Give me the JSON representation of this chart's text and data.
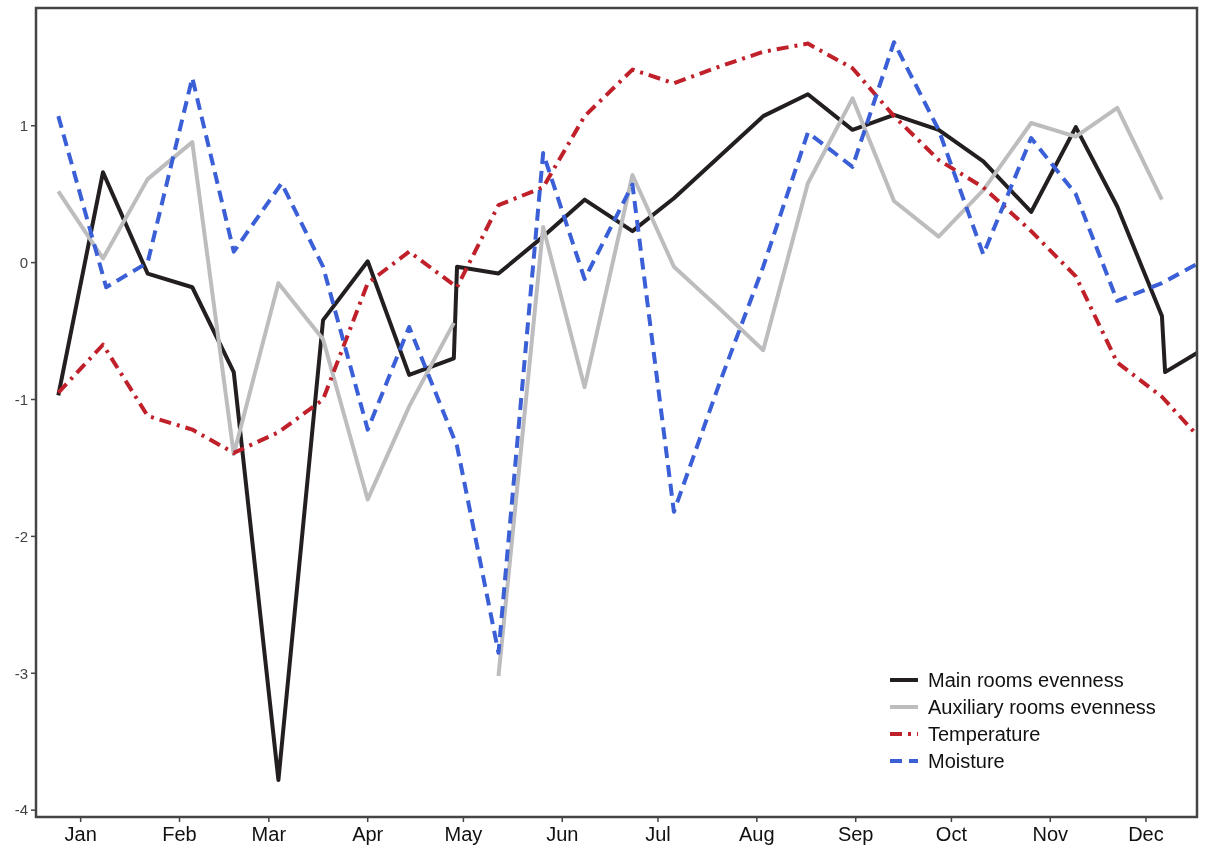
{
  "chart_data": {
    "type": "line",
    "xlim": [
      "--01-01",
      "--12-31"
    ],
    "ylim": [
      -4.05,
      1.86
    ],
    "xticks": [
      {
        "value": "--01-15",
        "label": "Jan"
      },
      {
        "value": "--02-15",
        "label": "Feb"
      },
      {
        "value": "--03-15",
        "label": "Mar"
      },
      {
        "value": "--04-15",
        "label": "Apr"
      },
      {
        "value": "--05-15",
        "label": "May"
      },
      {
        "value": "--06-15",
        "label": "Jun"
      },
      {
        "value": "--07-15",
        "label": "Jul"
      },
      {
        "value": "--08-15",
        "label": "Aug"
      },
      {
        "value": "--09-15",
        "label": "Sep"
      },
      {
        "value": "--10-15",
        "label": "Oct"
      },
      {
        "value": "--11-15",
        "label": "Nov"
      },
      {
        "value": "--12-15",
        "label": "Dec"
      }
    ],
    "yticks": [
      -4,
      -3,
      -2,
      -1,
      0,
      1
    ],
    "legend": "bottom right",
    "marker": "none",
    "series": [
      {
        "name": "Main rooms evenness",
        "color": "#231f20",
        "line_style": "solid",
        "x": [
          "--01-08",
          "--01-22",
          "--02-05",
          "--02-19",
          "--03-04",
          "--03-18",
          "--04-01",
          "--04-15",
          "--04-28",
          "--05-12",
          "--05-13",
          "--05-26",
          "--06-09",
          "--06-22",
          "--07-07",
          "--07-20",
          "--08-03",
          "--08-17",
          "--08-31",
          "--09-14",
          "--09-27",
          "--10-11",
          "--10-25",
          "--11-09",
          "--11-23",
          "--12-06",
          "--12-20",
          "--12-21",
          "--12-31"
        ],
        "values": [
          -0.97,
          0.66,
          -0.08,
          -0.18,
          -0.8,
          -3.78,
          -0.42,
          0.01,
          -0.82,
          -0.7,
          -0.03,
          -0.08,
          0.19,
          0.46,
          0.23,
          0.47,
          0.77,
          1.07,
          1.23,
          0.97,
          1.08,
          0.97,
          0.74,
          0.37,
          0.99,
          0.41,
          -0.39,
          -0.8,
          -0.66
        ]
      },
      {
        "name": "Auxiliary rooms evenness",
        "color": "#bdbdbf",
        "line_style": "solid",
        "x": [
          "--01-08",
          "--01-22",
          "--02-05",
          "--02-19",
          "--03-04",
          "--03-18",
          "--04-01",
          "--04-15",
          "--04-28",
          "--05-12",
          "--05-19",
          "--05-26",
          "--06-09",
          "--06-22",
          "--07-07",
          "--07-20",
          "--08-03",
          "--08-17",
          "--08-31",
          "--09-14",
          "--09-27",
          "--10-11",
          "--10-25",
          "--11-09",
          "--11-23",
          "--12-06",
          "--12-20"
        ],
        "values": [
          0.52,
          0.03,
          0.61,
          0.88,
          -1.4,
          -0.15,
          -0.56,
          -1.73,
          -1.05,
          -0.44,
          null,
          -3.02,
          0.26,
          -0.91,
          0.64,
          -0.03,
          -0.33,
          -0.64,
          0.58,
          1.2,
          0.45,
          0.19,
          0.53,
          1.02,
          0.92,
          1.13,
          0.46
        ]
      },
      {
        "name": "Temperature",
        "color": "#c0202a",
        "line_style": "dotted",
        "x": [
          "--01-08",
          "--01-22",
          "--02-05",
          "--02-19",
          "--03-04",
          "--03-18",
          "--04-01",
          "--04-15",
          "--04-28",
          "--05-13",
          "--05-26",
          "--06-09",
          "--06-22",
          "--07-07",
          "--07-20",
          "--08-03",
          "--08-17",
          "--08-31",
          "--09-14",
          "--09-27",
          "--10-11",
          "--10-25",
          "--11-09",
          "--11-23",
          "--12-06",
          "--12-20",
          "--12-31"
        ],
        "values": [
          -0.95,
          -0.6,
          -1.12,
          -1.22,
          -1.39,
          -1.24,
          -1.0,
          -0.15,
          0.08,
          -0.18,
          0.42,
          0.55,
          1.07,
          1.41,
          1.31,
          1.43,
          1.54,
          1.6,
          1.42,
          1.07,
          0.75,
          0.55,
          0.23,
          -0.1,
          -0.73,
          -0.98,
          -1.26
        ]
      },
      {
        "name": "Moisture",
        "color": "#3a5fd6",
        "line_style": "dashed",
        "x": [
          "--01-08",
          "--01-23",
          "--02-05",
          "--02-19",
          "--03-04",
          "--03-19",
          "--04-01",
          "--04-15",
          "--04-28",
          "--05-13",
          "--05-26",
          "--06-09",
          "--06-22",
          "--07-07",
          "--07-20",
          "--08-03",
          "--08-17",
          "--08-31",
          "--09-14",
          "--09-27",
          "--10-11",
          "--10-25",
          "--11-09",
          "--11-23",
          "--12-06",
          "--12-20",
          "--12-31"
        ],
        "values": [
          1.07,
          -0.18,
          0.0,
          1.35,
          0.08,
          0.58,
          -0.03,
          -1.22,
          -0.47,
          -1.34,
          -2.85,
          0.8,
          -0.12,
          0.57,
          -1.82,
          -0.9,
          -0.03,
          0.95,
          0.7,
          1.61,
          0.97,
          0.06,
          0.91,
          0.5,
          -0.28,
          -0.15,
          -0.01
        ]
      }
    ]
  }
}
